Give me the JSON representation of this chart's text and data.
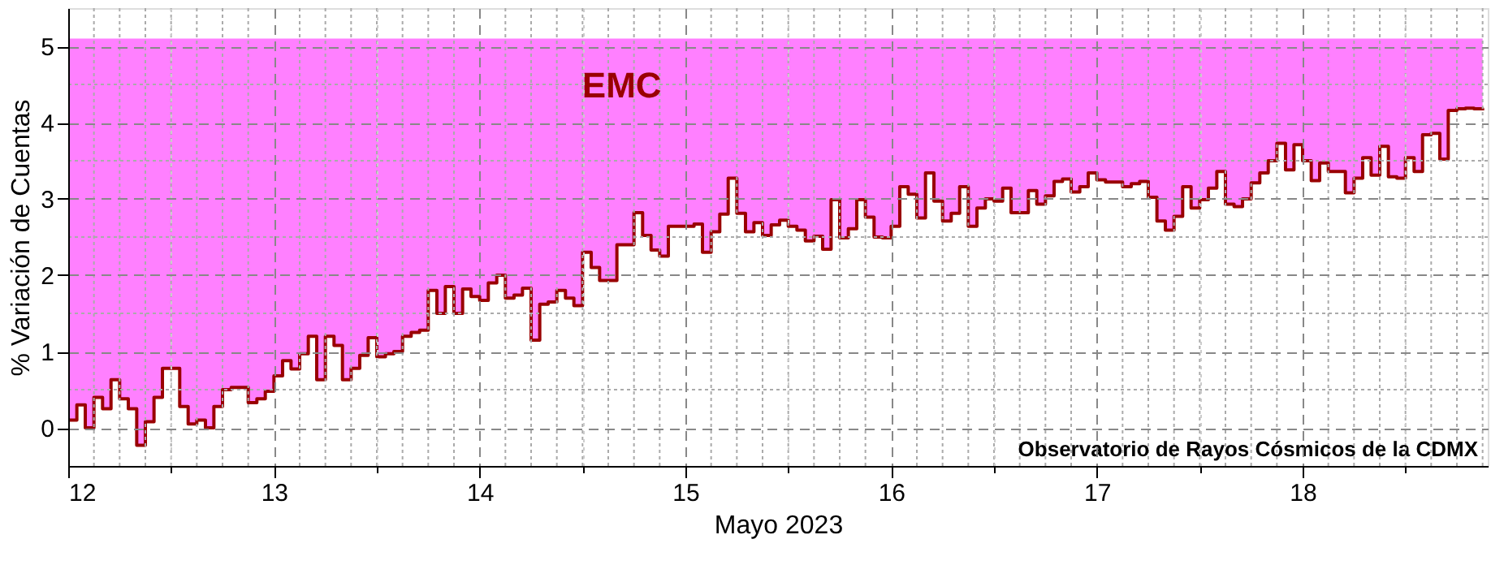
{
  "chart_data": {
    "type": "step",
    "xlabel": "Mayo 2023",
    "ylabel": "% Variación de Cuentas",
    "annotations": [
      "EMC",
      "Observatorio de Rayos Cósmicos de la CDMX"
    ],
    "xlim": [
      12,
      18.9
    ],
    "ylim": [
      -0.5,
      5.5
    ],
    "xticks": [
      12,
      {
        "value": 12.125,
        "label": null
      },
      {
        "value": 12.25,
        "label": null
      },
      {
        "value": 12.375,
        "label": null
      },
      {
        "value": 12.5,
        "label": null
      },
      {
        "value": 12.625,
        "label": null
      },
      {
        "value": 12.75,
        "label": null
      },
      {
        "value": 12.875,
        "label": null
      },
      13,
      {
        "value": 13.125,
        "label": null
      },
      {
        "value": 13.25,
        "label": null
      },
      {
        "value": 13.375,
        "label": null
      },
      {
        "value": 13.5,
        "label": null
      },
      {
        "value": 13.625,
        "label": null
      },
      {
        "value": 13.75,
        "label": null
      },
      {
        "value": 13.875,
        "label": null
      },
      14,
      {
        "value": 14.125,
        "label": null
      },
      {
        "value": 14.25,
        "label": null
      },
      {
        "value": 14.375,
        "label": null
      },
      {
        "value": 14.5,
        "label": null
      },
      {
        "value": 14.625,
        "label": null
      },
      {
        "value": 14.75,
        "label": null
      },
      {
        "value": 14.875,
        "label": null
      },
      15,
      {
        "value": 15.125,
        "label": null
      },
      {
        "value": 15.25,
        "label": null
      },
      {
        "value": 15.375,
        "label": null
      },
      {
        "value": 15.5,
        "label": null
      },
      {
        "value": 15.625,
        "label": null
      },
      {
        "value": 15.75,
        "label": null
      },
      {
        "value": 15.875,
        "label": null
      },
      16,
      {
        "value": 16.125,
        "label": null
      },
      {
        "value": 16.25,
        "label": null
      },
      {
        "value": 16.375,
        "label": null
      },
      {
        "value": 16.5,
        "label": null
      },
      {
        "value": 16.625,
        "label": null
      },
      {
        "value": 16.75,
        "label": null
      },
      {
        "value": 16.875,
        "label": null
      },
      17,
      {
        "value": 17.125,
        "label": null
      },
      {
        "value": 17.25,
        "label": null
      },
      {
        "value": 17.375,
        "label": null
      },
      {
        "value": 17.5,
        "label": null
      },
      {
        "value": 17.625,
        "label": null
      },
      {
        "value": 17.75,
        "label": null
      },
      {
        "value": 17.875,
        "label": null
      },
      18,
      {
        "value": 18.125,
        "label": null
      },
      {
        "value": 18.25,
        "label": null
      },
      {
        "value": 18.375,
        "label": null
      },
      {
        "value": 18.5,
        "label": null
      },
      {
        "value": 18.625,
        "label": null
      },
      {
        "value": 18.75,
        "label": null
      },
      {
        "value": 18.875,
        "label": null
      }
    ],
    "yticks": [
      0,
      {
        "value": 0.5,
        "label": null
      },
      1,
      {
        "value": 1.5,
        "label": null
      },
      2,
      {
        "value": 2.5,
        "label": null
      },
      3,
      {
        "value": 3.5,
        "label": null
      },
      4,
      {
        "value": 4.5,
        "label": null
      },
      5
    ],
    "grid": true,
    "line_style": "solid",
    "marker": "none",
    "series": [
      {
        "color": "#990000",
        "lower": [
          0.1,
          0.3,
          0.0,
          0.4,
          0.25,
          0.63,
          0.38,
          0.25,
          -0.23,
          0.08,
          0.4,
          0.78,
          0.78,
          0.28,
          0.05,
          0.1,
          0.0,
          0.28,
          0.5,
          0.53,
          0.53,
          0.33,
          0.38,
          0.48,
          0.68,
          0.88,
          0.77,
          0.97,
          1.2,
          0.63,
          1.2,
          1.08,
          0.63,
          0.78,
          0.95,
          1.18,
          0.93,
          0.97,
          1.0,
          1.2,
          1.25,
          1.28,
          1.8,
          1.5,
          1.85,
          1.5,
          1.82,
          1.72,
          1.67,
          1.9,
          2.0,
          1.7,
          1.74,
          1.83,
          1.15,
          1.62,
          1.65,
          1.8,
          1.7,
          1.6,
          2.3,
          2.1,
          1.93,
          1.93,
          2.4,
          2.4,
          2.82,
          2.52,
          2.33,
          2.25,
          2.64,
          2.64,
          2.64,
          2.67,
          2.3,
          2.57,
          2.8,
          3.27,
          2.81,
          2.57,
          2.69,
          2.52,
          2.66,
          2.72,
          2.64,
          2.59,
          2.45,
          2.51,
          2.34,
          2.99,
          2.49,
          2.61,
          2.99,
          2.76,
          2.5,
          2.49,
          2.64,
          3.16,
          3.06,
          2.75,
          3.34,
          2.97,
          2.71,
          2.81,
          3.16,
          2.64,
          2.88,
          3.0,
          2.97,
          3.14,
          2.82,
          2.82,
          3.11,
          2.93,
          3.04,
          3.23,
          3.26,
          3.09,
          3.16,
          3.34,
          3.25,
          3.22,
          3.22,
          3.16,
          3.2,
          3.23,
          3.02,
          2.71,
          2.59,
          2.77,
          3.16,
          2.88,
          2.99,
          3.14,
          3.36,
          2.93,
          2.9,
          3.0,
          3.21,
          3.34,
          3.5,
          3.73,
          3.38,
          3.71,
          3.5,
          3.24,
          3.47,
          3.36,
          3.36,
          3.08,
          3.27,
          3.54,
          3.31,
          3.69,
          3.29,
          3.27,
          3.54,
          3.36,
          3.84,
          3.86,
          3.52,
          4.16,
          4.18,
          4.19,
          4.18,
          4.16
        ],
        "x": [
          12,
          12.042,
          12.083,
          12.125,
          12.167,
          12.208,
          12.25,
          12.292,
          12.333,
          12.375,
          12.417,
          12.458,
          12.5,
          12.542,
          12.583,
          12.625,
          12.667,
          12.708,
          12.75,
          12.792,
          12.833,
          12.875,
          12.917,
          12.958,
          13,
          13.042,
          13.083,
          13.125,
          13.167,
          13.208,
          13.25,
          13.292,
          13.333,
          13.375,
          13.417,
          13.458,
          13.5,
          13.542,
          13.583,
          13.625,
          13.667,
          13.708,
          13.75,
          13.792,
          13.833,
          13.875,
          13.917,
          13.958,
          14,
          14.042,
          14.083,
          14.125,
          14.167,
          14.208,
          14.25,
          14.292,
          14.333,
          14.375,
          14.417,
          14.458,
          14.5,
          14.542,
          14.583,
          14.625,
          14.667,
          14.708,
          14.75,
          14.792,
          14.833,
          14.875,
          14.917,
          14.958,
          15,
          15.042,
          15.083,
          15.125,
          15.167,
          15.208,
          15.25,
          15.292,
          15.333,
          15.375,
          15.417,
          15.458,
          15.5,
          15.542,
          15.583,
          15.625,
          15.667,
          15.708,
          15.75,
          15.792,
          15.833,
          15.875,
          15.917,
          15.958,
          16,
          16.042,
          16.083,
          16.125,
          16.167,
          16.208,
          16.25,
          16.292,
          16.333,
          16.375,
          16.417,
          16.458,
          16.5,
          16.542,
          16.583,
          16.625,
          16.667,
          16.708,
          16.75,
          16.792,
          16.833,
          16.875,
          16.917,
          16.958,
          17,
          17.042,
          17.083,
          17.125,
          17.167,
          17.208,
          17.25,
          17.292,
          17.333,
          17.375,
          17.417,
          17.458,
          17.5,
          17.542,
          17.583,
          17.625,
          17.667,
          17.708,
          17.75,
          17.792,
          17.833,
          17.875,
          17.917,
          17.958,
          18,
          18.042,
          18.083,
          18.125,
          18.167,
          18.208,
          18.25,
          18.292,
          18.333,
          18.375,
          18.417,
          18.458,
          18.5,
          18.542,
          18.583,
          18.625,
          18.667,
          18.708,
          18.75,
          18.792,
          18.833,
          18.875
        ],
        "values": [
          0.1,
          0.3,
          0.0,
          0.4,
          0.25,
          0.63,
          0.38,
          0.25,
          -0.23,
          0.08,
          0.4,
          0.78,
          0.78,
          0.28,
          0.05,
          0.1,
          0.0,
          0.28,
          0.5,
          0.53,
          0.53,
          0.33,
          0.38,
          0.48,
          0.68,
          0.88,
          0.77,
          0.97,
          1.2,
          0.63,
          1.2,
          1.08,
          0.63,
          0.78,
          0.95,
          1.18,
          0.93,
          0.97,
          1.0,
          1.2,
          1.25,
          1.28,
          1.8,
          1.5,
          1.85,
          1.5,
          1.82,
          1.72,
          1.67,
          1.9,
          2.0,
          1.7,
          1.74,
          1.83,
          1.15,
          1.62,
          1.65,
          1.8,
          1.7,
          1.6,
          2.3,
          2.1,
          1.93,
          1.93,
          2.4,
          2.4,
          2.82,
          2.52,
          2.33,
          2.25,
          2.64,
          2.64,
          2.64,
          2.67,
          2.3,
          2.57,
          2.8,
          3.27,
          2.81,
          2.57,
          2.69,
          2.52,
          2.66,
          2.72,
          2.64,
          2.59,
          2.45,
          2.51,
          2.34,
          2.99,
          2.49,
          2.61,
          2.99,
          2.76,
          2.5,
          2.49,
          2.64,
          3.16,
          3.06,
          2.75,
          3.34,
          2.97,
          2.71,
          2.81,
          3.16,
          2.64,
          2.88,
          3.0,
          2.97,
          3.14,
          2.82,
          2.82,
          3.11,
          2.93,
          3.04,
          3.23,
          3.26,
          3.09,
          3.16,
          3.34,
          3.25,
          3.22,
          3.22,
          3.16,
          3.2,
          3.23,
          3.02,
          2.71,
          2.59,
          2.77,
          3.16,
          2.88,
          2.99,
          3.14,
          3.36,
          2.93,
          2.9,
          3.0,
          3.21,
          3.34,
          3.5,
          3.73,
          3.38,
          3.71,
          3.5,
          3.24,
          3.47,
          3.36,
          3.36,
          3.08,
          3.27,
          3.54,
          3.31,
          3.69,
          3.29,
          3.27,
          3.54,
          3.36,
          3.84,
          3.86,
          3.52,
          4.16,
          4.18,
          4.19,
          4.18,
          4.16
        ],
        "upper": [
          5.1,
          5.1,
          5.1,
          5.1,
          5.1,
          5.1,
          5.1,
          5.1,
          5.1,
          5.1,
          5.1,
          5.1,
          5.1,
          5.1,
          5.1,
          5.1,
          5.1,
          5.1,
          5.1,
          5.1,
          5.1,
          5.1,
          5.1,
          5.1,
          5.1,
          5.1,
          5.1,
          5.1,
          5.1,
          5.1,
          5.1,
          5.1,
          5.1,
          5.1,
          5.1,
          5.1,
          5.1,
          5.1,
          5.1,
          5.1,
          5.1,
          5.1,
          5.1,
          5.1,
          5.1,
          5.1,
          5.1,
          5.1,
          5.1,
          5.1,
          5.1,
          5.1,
          5.1,
          5.1,
          5.1,
          5.1,
          5.1,
          5.1,
          5.1,
          5.1,
          5.1,
          5.1,
          5.1,
          5.1,
          5.1,
          5.1,
          5.1,
          5.1,
          5.1,
          5.1,
          5.1,
          5.1,
          5.1,
          5.1,
          5.1,
          5.1,
          5.1,
          5.1,
          5.1,
          5.1,
          5.1,
          5.1,
          5.1,
          5.1,
          5.1,
          5.1,
          5.1,
          5.1,
          5.1,
          5.1,
          5.1,
          5.1,
          5.1,
          5.1,
          5.1,
          5.1,
          5.1,
          5.1,
          5.1,
          5.1,
          5.1,
          5.1,
          5.1,
          5.1,
          5.1,
          5.1,
          5.1,
          5.1,
          5.1,
          5.1,
          5.1,
          5.1,
          5.1,
          5.1,
          5.1,
          5.1,
          5.1,
          5.1,
          5.1,
          5.1,
          5.1,
          5.1,
          5.1,
          5.1,
          5.1,
          5.1,
          5.1,
          5.1,
          5.1,
          5.1,
          5.1,
          5.1,
          5.1,
          5.1,
          5.1,
          5.1,
          5.1,
          5.1,
          5.1,
          5.1,
          5.1,
          5.1,
          5.1,
          5.1,
          5.1,
          5.1,
          5.1,
          5.1,
          5.1,
          5.1,
          5.1,
          5.1,
          5.1,
          5.1,
          5.1,
          5.1,
          5.1,
          5.1,
          5.1,
          5.1,
          5.1,
          5.1,
          5.1,
          5.1,
          5.1,
          5.1
        ]
      }
    ]
  }
}
